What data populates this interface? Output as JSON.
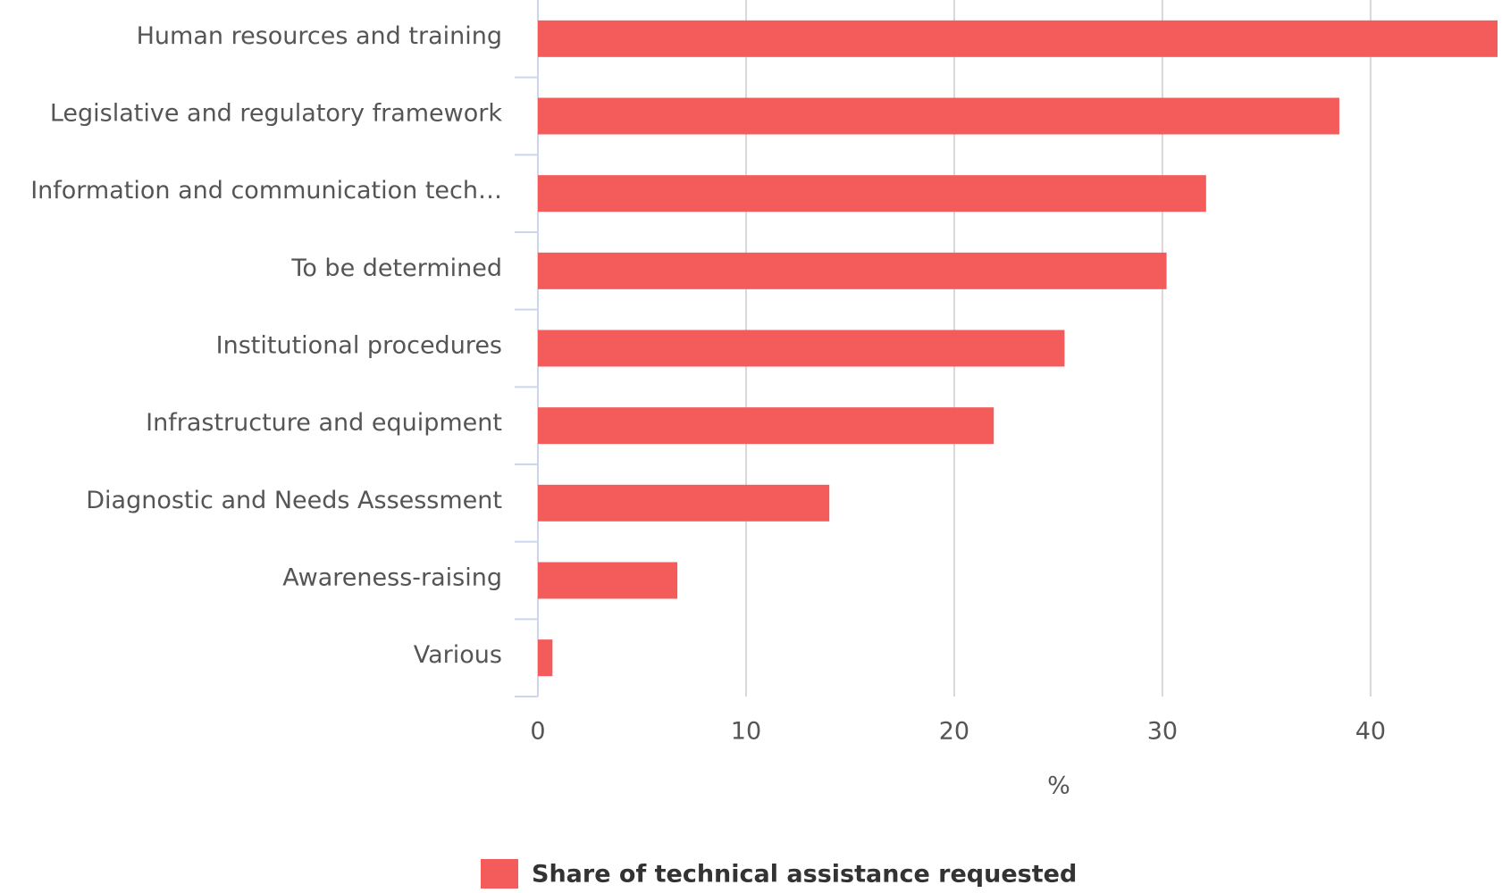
{
  "chart_data": {
    "type": "bar",
    "orientation": "horizontal",
    "categories": [
      "Human resources and training",
      "Legislative and regulatory framework",
      "Information and communication tech…",
      "To be determined",
      "Institutional procedures",
      "Infrastructure and equipment",
      "Diagnostic and Needs Assessment",
      "Awareness-raising",
      "Various"
    ],
    "series": [
      {
        "name": "Share of technical assistance requested",
        "color": "#f45b5b",
        "values": [
          46.1,
          38.5,
          32.1,
          30.2,
          25.3,
          21.9,
          14.0,
          6.7,
          0.7
        ]
      }
    ],
    "xlabel": "%",
    "xlim": [
      0,
      46.1
    ],
    "xticks": [
      0,
      10,
      20,
      30,
      40
    ],
    "grid": true,
    "legend": "bottom"
  }
}
